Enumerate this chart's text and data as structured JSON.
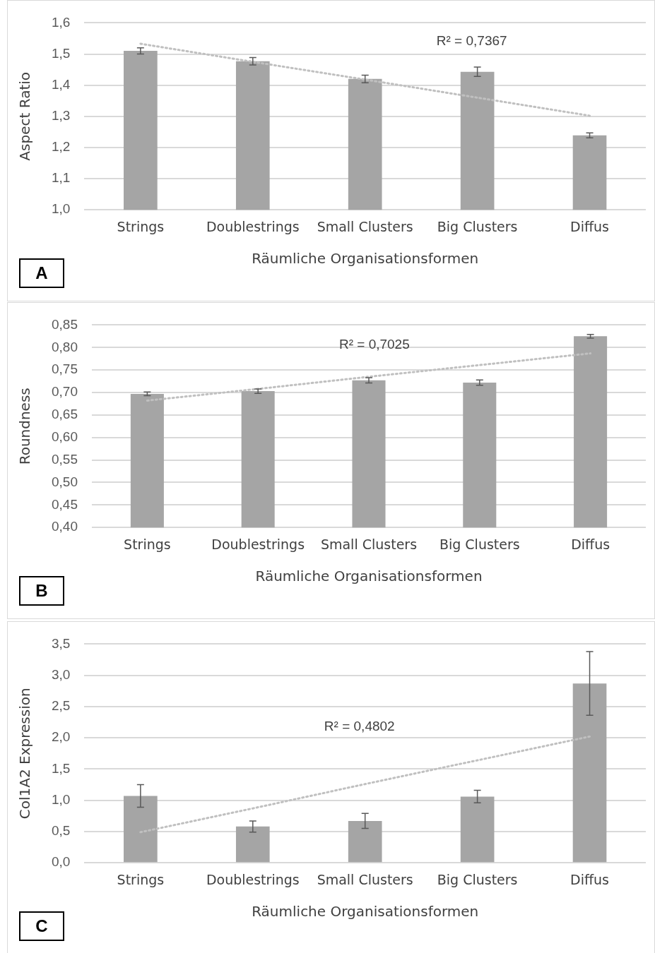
{
  "chart_data": [
    {
      "type": "bar",
      "ylabel": "Aspect Ratio",
      "xlabel": "Räumliche Organisationsformen",
      "categories": [
        "Strings",
        "Doublestrings",
        "Small Clusters",
        "Big Clusters",
        "Diffus"
      ],
      "series": [
        {
          "type": "bar",
          "color": "#a5a5a5",
          "values": [
            1.51,
            1.477,
            1.42,
            1.443,
            1.239
          ],
          "errors": [
            0.01,
            0.012,
            0.012,
            0.015,
            0.008
          ]
        },
        {
          "type": "line",
          "color": "#c0c0c0",
          "line_style": "dotted",
          "marker": "none",
          "values": [
            1.533,
            1.475,
            1.418,
            1.36,
            1.302
          ]
        }
      ],
      "ylim": [
        1.0,
        1.6
      ],
      "yticks": [
        {
          "value": 1.0,
          "label": "1,0"
        },
        {
          "value": 1.1,
          "label": "1,1"
        },
        {
          "value": 1.2,
          "label": "1,2"
        },
        {
          "value": 1.3,
          "label": "1,3"
        },
        {
          "value": 1.4,
          "label": "1,4"
        },
        {
          "value": 1.5,
          "label": "1,5"
        },
        {
          "value": 1.6,
          "label": "1,6"
        }
      ],
      "grid": "y",
      "legend": false,
      "annotations": [
        "R² = 0,7367",
        "A"
      ]
    },
    {
      "type": "bar",
      "ylabel": "Roundness",
      "xlabel": "Räumliche Organisationsformen",
      "categories": [
        "Strings",
        "Doublestrings",
        "Small Clusters",
        "Big Clusters",
        "Diffus"
      ],
      "series": [
        {
          "type": "bar",
          "color": "#a5a5a5",
          "values": [
            0.697,
            0.703,
            0.727,
            0.722,
            0.825
          ],
          "errors": [
            0.004,
            0.005,
            0.006,
            0.006,
            0.004
          ]
        },
        {
          "type": "line",
          "color": "#c0c0c0",
          "line_style": "dotted",
          "marker": "none",
          "values": [
            0.682,
            0.708,
            0.735,
            0.761,
            0.787
          ]
        }
      ],
      "ylim": [
        0.4,
        0.85
      ],
      "yticks": [
        {
          "value": 0.4,
          "label": "0,40"
        },
        {
          "value": 0.45,
          "label": "0,45"
        },
        {
          "value": 0.5,
          "label": "0,50"
        },
        {
          "value": 0.55,
          "label": "0,55"
        },
        {
          "value": 0.6,
          "label": "0,60"
        },
        {
          "value": 0.65,
          "label": "0,65"
        },
        {
          "value": 0.7,
          "label": "0,70"
        },
        {
          "value": 0.75,
          "label": "0,75"
        },
        {
          "value": 0.8,
          "label": "0,80"
        },
        {
          "value": 0.85,
          "label": "0,85"
        }
      ],
      "grid": "y",
      "legend": false,
      "annotations": [
        "R² = 0,7025",
        "B"
      ]
    },
    {
      "type": "bar",
      "ylabel": "Col1A2 Expression",
      "xlabel": "Räumliche Organisationsformen",
      "categories": [
        "Strings",
        "Doublestrings",
        "Small Clusters",
        "Big Clusters",
        "Diffus"
      ],
      "series": [
        {
          "type": "bar",
          "color": "#a5a5a5",
          "values": [
            1.07,
            0.58,
            0.67,
            1.06,
            2.87
          ],
          "errors": [
            0.18,
            0.09,
            0.12,
            0.1,
            0.51
          ]
        },
        {
          "type": "line",
          "color": "#c0c0c0",
          "line_style": "dotted",
          "marker": "none",
          "values": [
            0.49,
            0.87,
            1.26,
            1.64,
            2.02
          ]
        }
      ],
      "ylim": [
        0,
        3.5
      ],
      "yticks": [
        {
          "value": 0,
          "label": "0,0"
        },
        {
          "value": 0.5,
          "label": "0,5"
        },
        {
          "value": 1.0,
          "label": "1,0"
        },
        {
          "value": 1.5,
          "label": "1,5"
        },
        {
          "value": 2.0,
          "label": "2,0"
        },
        {
          "value": 2.5,
          "label": "2,5"
        },
        {
          "value": 3.0,
          "label": "3,0"
        },
        {
          "value": 3.5,
          "label": "3,5"
        }
      ],
      "grid": "y",
      "legend": false,
      "annotations": [
        "R² = 0,4802",
        "C"
      ]
    }
  ]
}
